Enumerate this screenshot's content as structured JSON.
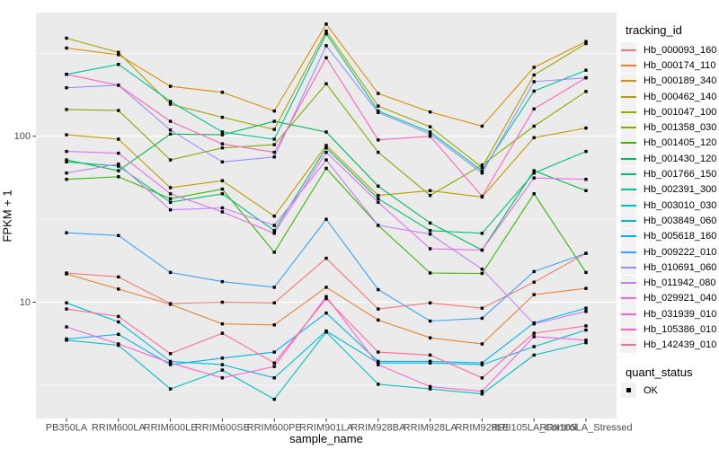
{
  "chart_data": {
    "type": "line",
    "title": "",
    "xlabel": "sample_name",
    "ylabel": "FPKM + 1",
    "y_scale": "log10",
    "ylim": [
      2.2,
      530
    ],
    "grid": "on",
    "panel_bg": "#EBEBEB",
    "grid_color": "#FFFFFF",
    "tick_label_color": "#4D4D4D",
    "marker": "square",
    "marker_color": "#000000",
    "legend_position": "right",
    "legend_title": "tracking_id",
    "quant_legend": {
      "title": "quant_status",
      "ok_label": "OK"
    },
    "y_ticks": [
      100,
      10
    ],
    "y_tick_labels": [
      "100",
      "10"
    ],
    "y_minor_ticks": [
      316.2,
      31.62,
      3.162
    ],
    "categories": [
      "PB350LA",
      "RRIM600LA",
      "RRIM600LE",
      "RRIM600SE",
      "RRIM600PE",
      "RRIM901LA",
      "RRIM928BA",
      "RRIM928LA",
      "RRIM928LE",
      "RRII105LA_Control",
      "RRII105LA_Stressed"
    ],
    "series": [
      {
        "name": "Hb_000093_160",
        "color": "#F8766D",
        "values": [
          15,
          14.2,
          9.8,
          10,
          9.9,
          18.4,
          9.1,
          9.9,
          9.2,
          13.2,
          19.7
        ]
      },
      {
        "name": "Hb_000174_110",
        "color": "#EA8331",
        "values": [
          14.8,
          12,
          9.7,
          7.4,
          7.3,
          12.3,
          7.8,
          6.1,
          5.6,
          11.1,
          12.1
        ]
      },
      {
        "name": "Hb_000189_340",
        "color": "#D89000",
        "values": [
          340,
          310,
          200,
          184,
          142,
          474,
          181,
          140,
          115,
          260,
          372
        ]
      },
      {
        "name": "Hb_000462_140",
        "color": "#C09B00",
        "values": [
          102,
          96,
          49,
          54,
          33,
          88,
          44,
          47,
          43,
          98,
          112
        ]
      },
      {
        "name": "Hb_001047_100",
        "color": "#A3A500",
        "values": [
          390,
          320,
          156,
          130,
          110,
          430,
          152,
          114,
          65,
          234,
          362
        ]
      },
      {
        "name": "Hb_001358_030",
        "color": "#7CAE00",
        "values": [
          145,
          143,
          72,
          85,
          89,
          207,
          80,
          44,
          67,
          115,
          186
        ]
      },
      {
        "name": "Hb_001405_120",
        "color": "#39B600",
        "values": [
          55,
          57,
          42,
          48,
          20,
          64,
          29,
          15,
          14.9,
          45,
          15.1
        ]
      },
      {
        "name": "Hb_001430_120",
        "color": "#00BB4E",
        "values": [
          72,
          62,
          103,
          102,
          123,
          106,
          50,
          30,
          20.6,
          62,
          47
        ]
      },
      {
        "name": "Hb_001766_150",
        "color": "#00C079",
        "values": [
          70,
          66,
          40,
          45,
          27,
          85,
          42,
          27,
          26,
          60,
          81
        ]
      },
      {
        "name": "Hb_002391_300",
        "color": "#00C19C",
        "values": [
          236,
          271,
          162,
          106,
          96,
          414,
          142,
          106,
          62,
          187,
          250
        ]
      },
      {
        "name": "Hb_003010_030",
        "color": "#00BFC4",
        "values": [
          5.9,
          5.5,
          3,
          3.9,
          2.6,
          6.6,
          3.2,
          3,
          2.8,
          4.8,
          5.7
        ]
      },
      {
        "name": "Hb_003849_060",
        "color": "#00BAE0",
        "values": [
          9.9,
          7.6,
          4.4,
          4.2,
          3.5,
          6.7,
          4.3,
          4.3,
          4.2,
          5.4,
          6.8
        ]
      },
      {
        "name": "Hb_005618_160",
        "color": "#00B0F6",
        "values": [
          6,
          6.4,
          4.2,
          4.6,
          5,
          8.6,
          4.4,
          4.4,
          4.3,
          7.5,
          9.2
        ]
      },
      {
        "name": "Hb_009222_010",
        "color": "#35A2FF",
        "values": [
          26.2,
          25.2,
          15.1,
          13.3,
          12.3,
          31.6,
          11.9,
          7.7,
          8,
          15.3,
          19.7
        ]
      },
      {
        "name": "Hb_010691_060",
        "color": "#9590FF",
        "values": [
          196,
          203,
          109,
          70,
          75,
          351,
          139,
          103,
          60,
          213,
          225
        ]
      },
      {
        "name": "Hb_011942_080",
        "color": "#C77CFF",
        "values": [
          60,
          68,
          36,
          37,
          29,
          72,
          29,
          25.7,
          15.8,
          7.4,
          8.8
        ]
      },
      {
        "name": "Hb_029921_040",
        "color": "#E76BF3",
        "values": [
          81,
          79,
          45,
          35,
          26,
          80,
          40,
          21,
          20.6,
          56,
          55
        ]
      },
      {
        "name": "Hb_031939_010",
        "color": "#FA62DB",
        "values": [
          7.1,
          5.6,
          4.3,
          3.5,
          4.1,
          10.8,
          4.2,
          3.1,
          2.9,
          6.2,
          5.9
        ]
      },
      {
        "name": "Hb_105386_010",
        "color": "#FF62BC",
        "values": [
          236,
          203,
          123,
          90,
          80,
          297,
          95,
          100,
          43.5,
          146,
          225
        ]
      },
      {
        "name": "Hb_142439_010",
        "color": "#FF6A98",
        "values": [
          9.1,
          8.2,
          4.9,
          6.5,
          4.3,
          10.5,
          5,
          4.8,
          3.5,
          6.5,
          7.2
        ]
      }
    ]
  }
}
